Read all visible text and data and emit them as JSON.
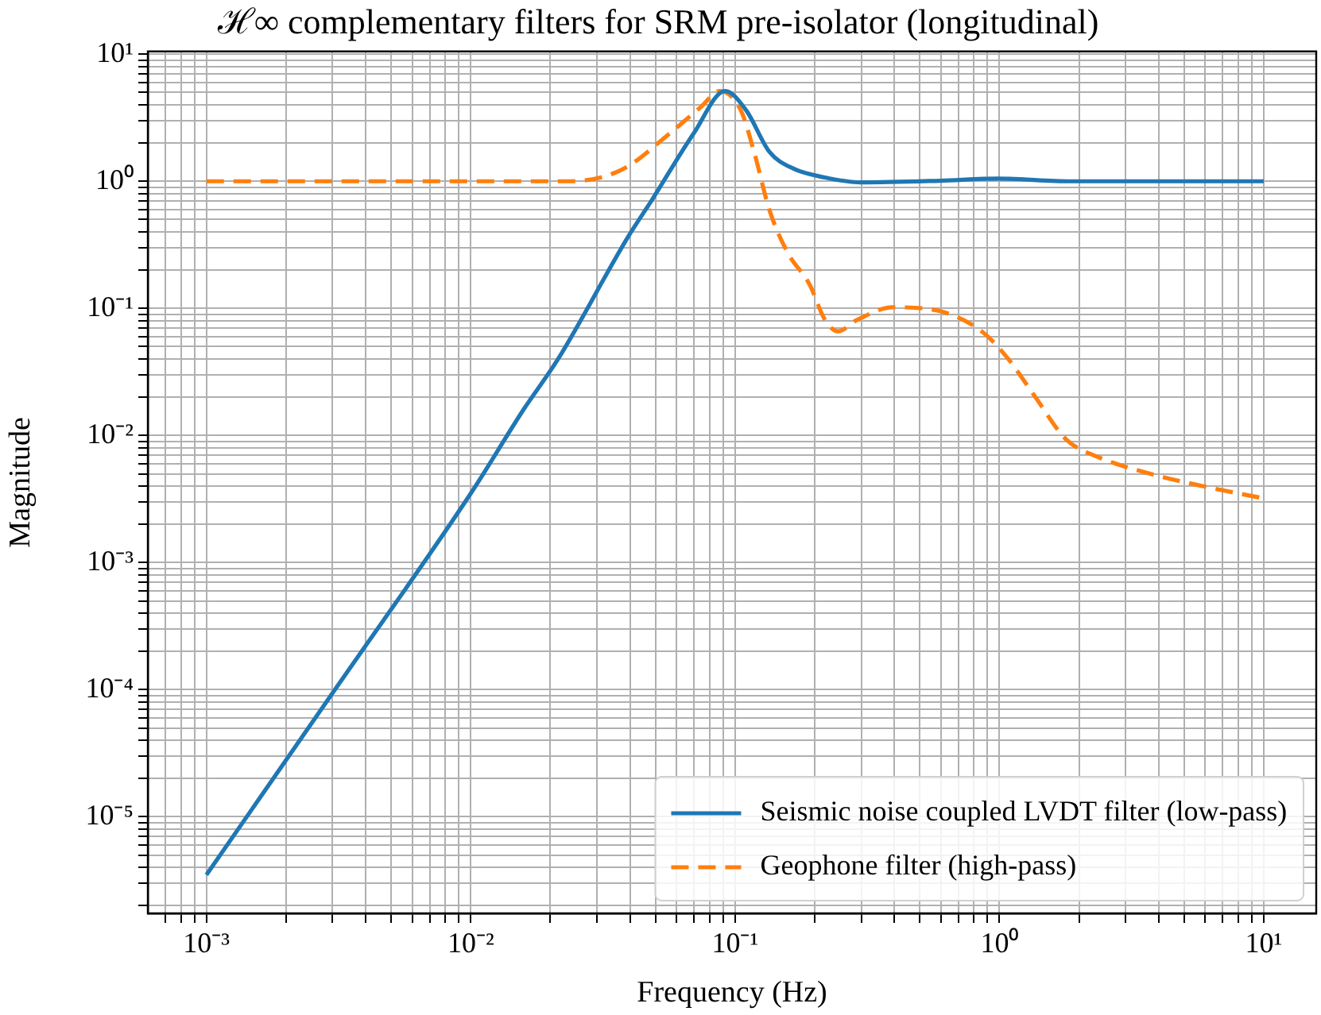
{
  "chart_data": {
    "type": "line",
    "title": "ℋ∞ complementary filters for SRM pre-isolator (longitudinal)",
    "xlabel": "Frequency (Hz)",
    "ylabel": "Magnitude",
    "log": "xy",
    "grid": true,
    "legend": "bottom right",
    "marker": "none",
    "xlim": [
      0.00063,
      15.8
    ],
    "ylim": [
      1.74e-06,
      10.5
    ],
    "xticks": [
      {
        "value": 0.0007,
        "label": null
      },
      {
        "value": 0.0008,
        "label": null
      },
      {
        "value": 0.0009,
        "label": null
      },
      {
        "value": 0.001,
        "label": "10⁻³"
      },
      {
        "value": 0.002,
        "label": null
      },
      {
        "value": 0.003,
        "label": null
      },
      {
        "value": 0.004,
        "label": null
      },
      {
        "value": 0.005,
        "label": null
      },
      {
        "value": 0.006,
        "label": null
      },
      {
        "value": 0.007,
        "label": null
      },
      {
        "value": 0.008,
        "label": null
      },
      {
        "value": 0.009,
        "label": null
      },
      {
        "value": 0.01,
        "label": "10⁻²"
      },
      {
        "value": 0.02,
        "label": null
      },
      {
        "value": 0.03,
        "label": null
      },
      {
        "value": 0.04,
        "label": null
      },
      {
        "value": 0.05,
        "label": null
      },
      {
        "value": 0.06,
        "label": null
      },
      {
        "value": 0.07,
        "label": null
      },
      {
        "value": 0.08,
        "label": null
      },
      {
        "value": 0.09,
        "label": null
      },
      {
        "value": 0.1,
        "label": "10⁻¹"
      },
      {
        "value": 0.2,
        "label": null
      },
      {
        "value": 0.3,
        "label": null
      },
      {
        "value": 0.4,
        "label": null
      },
      {
        "value": 0.5,
        "label": null
      },
      {
        "value": 0.6,
        "label": null
      },
      {
        "value": 0.7,
        "label": null
      },
      {
        "value": 0.8,
        "label": null
      },
      {
        "value": 0.9,
        "label": null
      },
      {
        "value": 1,
        "label": "10⁰"
      },
      {
        "value": 2,
        "label": null
      },
      {
        "value": 3,
        "label": null
      },
      {
        "value": 4,
        "label": null
      },
      {
        "value": 5,
        "label": null
      },
      {
        "value": 6,
        "label": null
      },
      {
        "value": 7,
        "label": null
      },
      {
        "value": 8,
        "label": null
      },
      {
        "value": 9,
        "label": null
      },
      {
        "value": 10,
        "label": "10¹"
      }
    ],
    "yticks": [
      {
        "value": 2e-06,
        "label": null
      },
      {
        "value": 3e-06,
        "label": null
      },
      {
        "value": 4e-06,
        "label": null
      },
      {
        "value": 5e-06,
        "label": null
      },
      {
        "value": 6e-06,
        "label": null
      },
      {
        "value": 7e-06,
        "label": null
      },
      {
        "value": 8e-06,
        "label": null
      },
      {
        "value": 9e-06,
        "label": null
      },
      {
        "value": 1e-05,
        "label": "10⁻⁵"
      },
      {
        "value": 2e-05,
        "label": null
      },
      {
        "value": 3e-05,
        "label": null
      },
      {
        "value": 4e-05,
        "label": null
      },
      {
        "value": 5e-05,
        "label": null
      },
      {
        "value": 6e-05,
        "label": null
      },
      {
        "value": 7e-05,
        "label": null
      },
      {
        "value": 8e-05,
        "label": null
      },
      {
        "value": 9e-05,
        "label": null
      },
      {
        "value": 0.0001,
        "label": "10⁻⁴"
      },
      {
        "value": 0.0002,
        "label": null
      },
      {
        "value": 0.0003,
        "label": null
      },
      {
        "value": 0.0004,
        "label": null
      },
      {
        "value": 0.0005,
        "label": null
      },
      {
        "value": 0.0006,
        "label": null
      },
      {
        "value": 0.0007,
        "label": null
      },
      {
        "value": 0.0008,
        "label": null
      },
      {
        "value": 0.0009,
        "label": null
      },
      {
        "value": 0.001,
        "label": "10⁻³"
      },
      {
        "value": 0.002,
        "label": null
      },
      {
        "value": 0.003,
        "label": null
      },
      {
        "value": 0.004,
        "label": null
      },
      {
        "value": 0.005,
        "label": null
      },
      {
        "value": 0.006,
        "label": null
      },
      {
        "value": 0.007,
        "label": null
      },
      {
        "value": 0.008,
        "label": null
      },
      {
        "value": 0.009,
        "label": null
      },
      {
        "value": 0.01,
        "label": "10⁻²"
      },
      {
        "value": 0.02,
        "label": null
      },
      {
        "value": 0.03,
        "label": null
      },
      {
        "value": 0.04,
        "label": null
      },
      {
        "value": 0.05,
        "label": null
      },
      {
        "value": 0.06,
        "label": null
      },
      {
        "value": 0.07,
        "label": null
      },
      {
        "value": 0.08,
        "label": null
      },
      {
        "value": 0.09,
        "label": null
      },
      {
        "value": 0.1,
        "label": "10⁻¹"
      },
      {
        "value": 0.2,
        "label": null
      },
      {
        "value": 0.3,
        "label": null
      },
      {
        "value": 0.4,
        "label": null
      },
      {
        "value": 0.5,
        "label": null
      },
      {
        "value": 0.6,
        "label": null
      },
      {
        "value": 0.7,
        "label": null
      },
      {
        "value": 0.8,
        "label": null
      },
      {
        "value": 0.9,
        "label": null
      },
      {
        "value": 1,
        "label": "10⁰"
      },
      {
        "value": 2,
        "label": null
      },
      {
        "value": 3,
        "label": null
      },
      {
        "value": 4,
        "label": null
      },
      {
        "value": 5,
        "label": null
      },
      {
        "value": 6,
        "label": null
      },
      {
        "value": 7,
        "label": null
      },
      {
        "value": 8,
        "label": null
      },
      {
        "value": 9,
        "label": null
      },
      {
        "value": 10,
        "label": "10¹"
      }
    ],
    "series": [
      {
        "name": "Seismic noise coupled LVDT filter (low-pass)",
        "color": "#1f77b4",
        "line_style": "solid",
        "x": [
          0.001,
          0.00316,
          0.01,
          0.0159,
          0.0214,
          0.0395,
          0.0484,
          0.0697,
          0.0917,
          0.11,
          0.135,
          0.166,
          0.219,
          0.299,
          0.594,
          0.986,
          1.86,
          10
        ],
        "values": [
          3.5e-06,
          0.00011,
          0.0035,
          0.0162,
          0.04,
          0.37,
          0.71,
          2.38,
          5.13,
          3.63,
          1.7,
          1.26,
          1.07,
          0.98,
          1.01,
          1.05,
          1.0,
          1.0
        ]
      },
      {
        "name": "Geophone filter (high-pass)",
        "color": "#ff7f0e",
        "line_style": "dashed",
        "x": [
          0.001,
          0.01,
          0.0233,
          0.031,
          0.0395,
          0.0553,
          0.0738,
          0.0875,
          0.105,
          0.118,
          0.135,
          0.158,
          0.191,
          0.219,
          0.245,
          0.289,
          0.395,
          0.597,
          0.865,
          1.08,
          1.36,
          1.79,
          2.35,
          3.72,
          5.86,
          10
        ],
        "values": [
          1,
          1,
          1,
          1.07,
          1.32,
          2.29,
          3.8,
          5.13,
          3.63,
          1.7,
          0.59,
          0.275,
          0.155,
          0.081,
          0.066,
          0.081,
          0.102,
          0.095,
          0.065,
          0.04,
          0.0204,
          0.0093,
          0.0068,
          0.005,
          0.004,
          0.0032
        ]
      }
    ]
  }
}
